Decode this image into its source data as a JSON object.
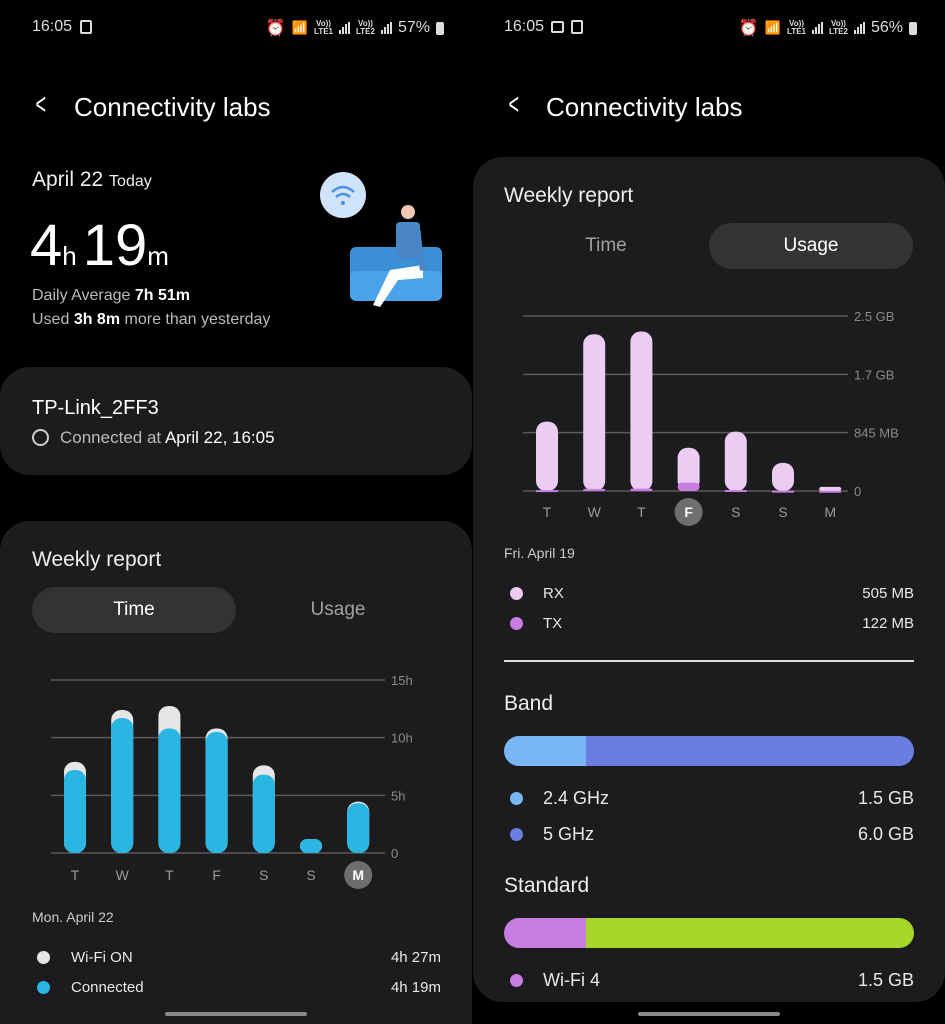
{
  "left": {
    "status": {
      "time": "16:05",
      "battery": "57%",
      "sim1": "LTE1",
      "sim2": "LTE2",
      "volte": "Vo))"
    },
    "header": {
      "title": "Connectivity labs"
    },
    "today": {
      "date": "April 22",
      "date_suffix": "Today",
      "hours": "4",
      "h_unit": "h",
      "minutes": "19",
      "m_unit": "m",
      "daily_avg_label": "Daily Average",
      "daily_avg_value": "7h 51m",
      "used_prefix": "Used",
      "used_value": "3h 8m",
      "used_suffix": "more than yesterday"
    },
    "network": {
      "ssid": "TP-Link_2FF3",
      "connected_prefix": "Connected at",
      "connected_value": "April 22, 16:05"
    },
    "weekly": {
      "title": "Weekly report",
      "tabs": [
        "Time",
        "Usage"
      ],
      "selected_tab": "Time",
      "selected_day_label": "Mon. April 22",
      "legend": [
        {
          "label": "Wi-Fi ON",
          "value": "4h 27m",
          "color": "#e6e6e6"
        },
        {
          "label": "Connected",
          "value": "4h 19m",
          "color": "#29b6e3"
        }
      ]
    }
  },
  "right": {
    "status": {
      "time": "16:05",
      "battery": "56%",
      "sim1": "LTE1",
      "sim2": "LTE2",
      "volte": "Vo))"
    },
    "header": {
      "title": "Connectivity labs"
    },
    "weekly": {
      "title": "Weekly report",
      "tabs": [
        "Time",
        "Usage"
      ],
      "selected_tab": "Usage",
      "selected_day_label": "Fri. April 19",
      "legend": [
        {
          "label": "RX",
          "value": "505 MB",
          "color": "#ecccf2"
        },
        {
          "label": "TX",
          "value": "122 MB",
          "color": "#c77ee0"
        }
      ]
    },
    "band": {
      "title": "Band",
      "items": [
        {
          "label": "2.4 GHz",
          "value": "1.5 GB",
          "share": 20,
          "color": "#79b6f6"
        },
        {
          "label": "5 GHz",
          "value": "6.0 GB",
          "share": 80,
          "color": "#6a7de0"
        }
      ]
    },
    "standard": {
      "title": "Standard",
      "items": [
        {
          "label": "Wi-Fi 4",
          "value": "1.5 GB",
          "share": 20,
          "color": "#c77ee0"
        }
      ],
      "other_share": 80,
      "other_color": "#a6d82b"
    }
  },
  "chart_data": [
    {
      "type": "bar",
      "categories": [
        "T",
        "W",
        "T",
        "F",
        "S",
        "S",
        "M"
      ],
      "highlighted": "M",
      "ylim": [
        0,
        15
      ],
      "ytick_labels": [
        "0",
        "5h",
        "10h",
        "15h"
      ],
      "yticks": [
        0,
        5,
        10,
        15
      ],
      "grid": true,
      "series": [
        {
          "name": "Wi-Fi ON",
          "values": [
            7.9,
            12.4,
            12.75,
            10.8,
            7.6,
            1.2,
            4.45
          ],
          "color": "#e6e6e6"
        },
        {
          "name": "Connected",
          "values": [
            7.2,
            11.7,
            10.8,
            10.5,
            6.8,
            1.2,
            4.32
          ],
          "color": "#29b6e3"
        }
      ]
    },
    {
      "type": "bar",
      "categories": [
        "T",
        "W",
        "T",
        "F",
        "S",
        "S",
        "M"
      ],
      "highlighted": "F",
      "ylim": [
        0,
        2535
      ],
      "ytick_labels": [
        "0",
        "845 MB",
        "1.7 GB",
        "2.5 GB"
      ],
      "yticks": [
        0,
        845,
        1690,
        2535
      ],
      "grid": true,
      "series": [
        {
          "name": "RX",
          "values": [
            1005,
            2270,
            2310,
            627,
            860,
            408,
            60
          ],
          "color": "#ecccf2"
        },
        {
          "name": "TX",
          "values": [
            12,
            30,
            35,
            122,
            15,
            5,
            4
          ],
          "color": "#c77ee0"
        }
      ]
    }
  ]
}
